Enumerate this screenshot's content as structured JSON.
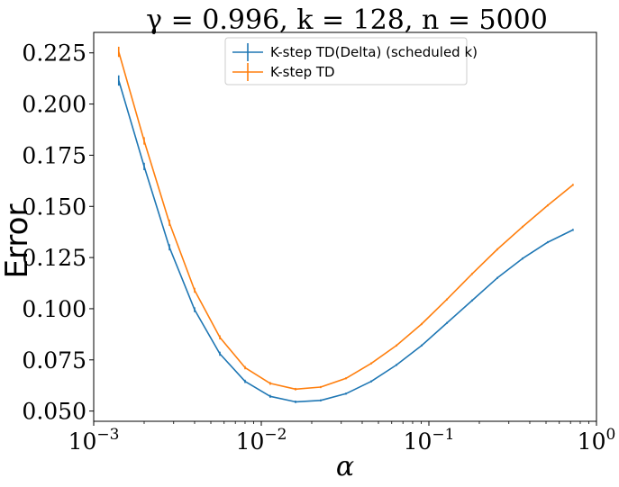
{
  "chart_data": {
    "type": "line",
    "title": "γ = 0.996, k = 128, n = 5000",
    "xlabel": "α",
    "ylabel": "Error",
    "x_scale": "log",
    "xlim": [
      0.001,
      1.0
    ],
    "ylim": [
      0.045,
      0.235
    ],
    "x_ticks": [
      {
        "value": 0.001,
        "base": "10",
        "exp": "−3"
      },
      {
        "value": 0.01,
        "base": "10",
        "exp": "−2"
      },
      {
        "value": 0.1,
        "base": "10",
        "exp": "−1"
      },
      {
        "value": 1.0,
        "base": "10",
        "exp": "0"
      }
    ],
    "y_ticks": [
      {
        "value": 0.05,
        "label": "0.050"
      },
      {
        "value": 0.075,
        "label": "0.075"
      },
      {
        "value": 0.1,
        "label": "0.100"
      },
      {
        "value": 0.125,
        "label": "0.125"
      },
      {
        "value": 0.15,
        "label": "0.150"
      },
      {
        "value": 0.175,
        "label": "0.175"
      },
      {
        "value": 0.2,
        "label": "0.200"
      },
      {
        "value": 0.225,
        "label": "0.225"
      }
    ],
    "grid": false,
    "legend_position": "top-center",
    "x": [
      0.00141,
      0.002,
      0.00283,
      0.004,
      0.00566,
      0.008,
      0.0113,
      0.016,
      0.0226,
      0.032,
      0.0453,
      0.064,
      0.0905,
      0.128,
      0.181,
      0.256,
      0.362,
      0.512,
      0.724
    ],
    "series": [
      {
        "name": "K-step TD(Delta) (scheduled k)",
        "color": "#1f77b4",
        "values": [
          0.2115,
          0.1695,
          0.13,
          0.0995,
          0.078,
          0.0645,
          0.0572,
          0.0545,
          0.0552,
          0.0585,
          0.0645,
          0.0725,
          0.082,
          0.093,
          0.104,
          0.115,
          0.1245,
          0.1325,
          0.1385
        ],
        "errors": [
          0.0025,
          0.0018,
          0.0015,
          0.0012,
          0.001,
          0.0008,
          0.0007,
          0.0006,
          0.0005,
          0.0005,
          0.0005,
          0.0005,
          0.0005,
          0.0005,
          0.0005,
          0.0005,
          0.0005,
          0.0005,
          0.0005
        ]
      },
      {
        "name": "K-step TD",
        "color": "#ff7f0e",
        "values": [
          0.2255,
          0.182,
          0.142,
          0.109,
          0.086,
          0.0712,
          0.0635,
          0.0607,
          0.0617,
          0.066,
          0.0733,
          0.082,
          0.0925,
          0.1045,
          0.117,
          0.129,
          0.14,
          0.1505,
          0.1605
        ],
        "errors": [
          0.0025,
          0.0018,
          0.0015,
          0.0012,
          0.001,
          0.0008,
          0.0007,
          0.0006,
          0.0005,
          0.0005,
          0.0005,
          0.0005,
          0.0005,
          0.0005,
          0.0005,
          0.0005,
          0.0005,
          0.0005,
          0.0005
        ]
      }
    ]
  }
}
